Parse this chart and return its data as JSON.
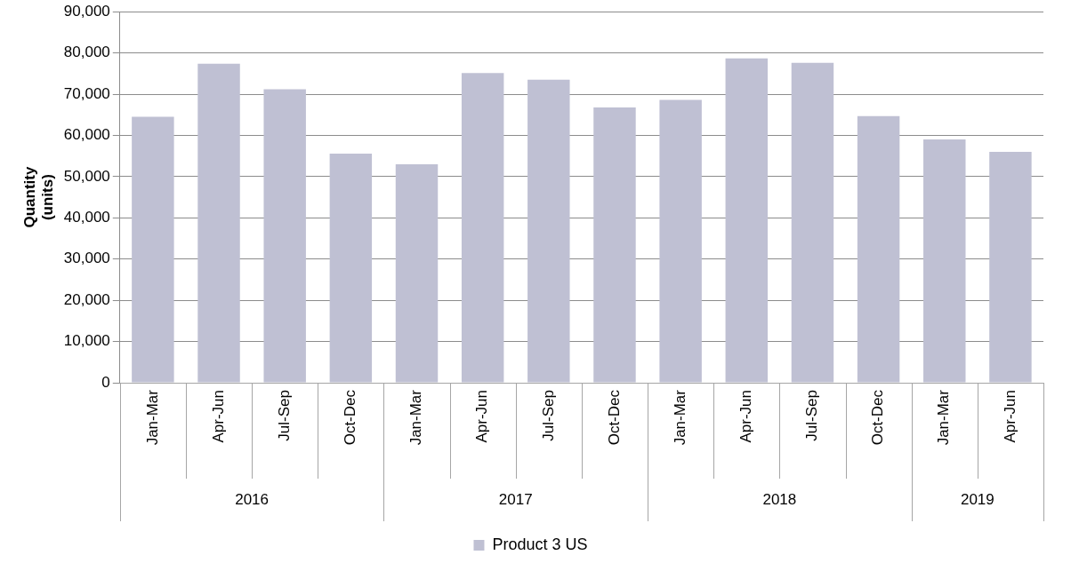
{
  "chart_data": {
    "type": "bar",
    "ylabel": "Quantity (units)",
    "categories": [
      "Jan-Mar",
      "Apr-Jun",
      "Jul-Sep",
      "Oct-Dec",
      "Jan-Mar",
      "Apr-Jun",
      "Jul-Sep",
      "Oct-Dec",
      "Jan-Mar",
      "Apr-Jun",
      "Jul-Sep",
      "Oct-Dec",
      "Jan-Mar",
      "Apr-Jun"
    ],
    "series": [
      {
        "name": "Product 3 US",
        "color": "#bfc0d3",
        "values": [
          64500,
          77400,
          71200,
          55600,
          53000,
          75100,
          73500,
          66800,
          68600,
          78700,
          77600,
          64700,
          59000,
          56000
        ]
      }
    ],
    "annotations": [
      "2016",
      "2017",
      "2018",
      "2019"
    ],
    "ylim": [
      0,
      90000
    ],
    "yticks": [
      0,
      {
        "value": 10000,
        "label": "10,000"
      },
      {
        "value": 20000,
        "label": "20,000"
      },
      {
        "value": 30000,
        "label": "30,000"
      },
      {
        "value": 40000,
        "label": "40,000"
      },
      {
        "value": 50000,
        "label": "50,000"
      },
      {
        "value": 60000,
        "label": "60,000"
      },
      {
        "value": 70000,
        "label": "70,000"
      },
      {
        "value": 80000,
        "label": "80,000"
      },
      {
        "value": 90000,
        "label": "90,000"
      }
    ],
    "grid": "y",
    "legend": "bottom"
  }
}
